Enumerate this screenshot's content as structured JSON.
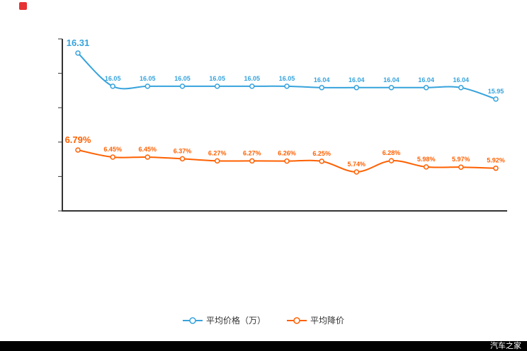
{
  "decor": {
    "red_mark_color": "#e63232"
  },
  "legend": [
    {
      "label": "平均价格（万）",
      "color": "#36a3dc"
    },
    {
      "label": "平均降价",
      "color": "#ff6000"
    }
  ],
  "watermark": {
    "text": "汽车之家",
    "bar_color": "#000000",
    "text_color": "#ffffff"
  },
  "chart_data": {
    "type": "line",
    "title": "",
    "xlabel": "",
    "ylabel": "",
    "x_tick_labels_visible": false,
    "grid": false,
    "legend_position": "bottom",
    "series": [
      {
        "name": "平均价格（万）",
        "color": "#36a3dc",
        "suffix": "",
        "values": [
          16.31,
          16.05,
          16.05,
          16.05,
          16.05,
          16.05,
          16.05,
          16.04,
          16.04,
          16.04,
          16.04,
          16.04,
          15.95
        ]
      },
      {
        "name": "平均降价",
        "color": "#ff6000",
        "suffix": "%",
        "values": [
          6.79,
          6.45,
          6.45,
          6.37,
          6.27,
          6.27,
          6.26,
          6.25,
          5.74,
          6.28,
          5.98,
          5.97,
          5.92
        ]
      }
    ]
  }
}
